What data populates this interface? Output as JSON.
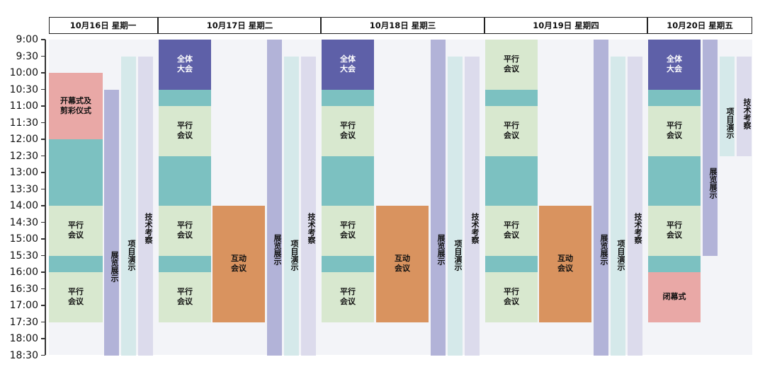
{
  "time_labels": [
    "9:00",
    "9:30",
    "10:00",
    "10:30",
    "11:00",
    "11:30",
    "12:00",
    "12:30",
    "13:00",
    "13:30",
    "14:00",
    "14:30",
    "15:00",
    "15:30",
    "16:00",
    "16:30",
    "17:00",
    "17:30",
    "18:00",
    "18:30"
  ],
  "days": [
    {
      "label": "10月16日  星期一"
    },
    {
      "label": "10月17日  星期二"
    },
    {
      "label": "10月18日  星期三"
    },
    {
      "label": "10月19日  星期四"
    },
    {
      "label": "10月20日  星期五"
    }
  ],
  "colors": {
    "plenary": "#5e60a8",
    "teal": "#7cc1c1",
    "parallel": "#d8e8cf",
    "interactive": "#d9935f",
    "ceremony": "#e9a8a6",
    "exhibition": "#b2b3d8",
    "demo": "#d5e9ea",
    "tech_tour": "#dcdbec",
    "grid_bg": "#f3f4f8"
  },
  "labels": {
    "opening": "开幕式及\n剪彩仪式",
    "parallel": "平行\n会议",
    "plenary": "全体\n大会",
    "interactive": "互动\n会议",
    "exhibition": "展览展示",
    "demo": "项目演示",
    "tech_tour": "技术考察",
    "closing": "闭幕式"
  },
  "events": [
    {
      "day": 0,
      "lane": "main",
      "start": "10:00",
      "end": "12:00",
      "kind": "ceremony",
      "label": "opening"
    },
    {
      "day": 0,
      "lane": "main",
      "start": "12:00",
      "end": "14:00",
      "kind": "teal"
    },
    {
      "day": 0,
      "lane": "main",
      "start": "14:00",
      "end": "15:30",
      "kind": "parallel",
      "label": "parallel"
    },
    {
      "day": 0,
      "lane": "main",
      "start": "15:30",
      "end": "16:00",
      "kind": "teal"
    },
    {
      "day": 0,
      "lane": "main",
      "start": "16:00",
      "end": "17:30",
      "kind": "parallel",
      "label": "parallel"
    },
    {
      "day": 0,
      "lane": "exhibition",
      "start": "10:30",
      "end": "18:30",
      "kind": "exhibition",
      "label": "exhibition"
    },
    {
      "day": 0,
      "lane": "demo",
      "start": "9:30",
      "end": "18:30",
      "kind": "demo",
      "label": "demo"
    },
    {
      "day": 0,
      "lane": "tech",
      "start": "9:30",
      "end": "18:30",
      "kind": "tech_tour",
      "label": "tech_tour"
    },
    {
      "day": 1,
      "lane": "main",
      "start": "9:00",
      "end": "10:30",
      "kind": "plenary",
      "label": "plenary"
    },
    {
      "day": 1,
      "lane": "main",
      "start": "10:30",
      "end": "11:00",
      "kind": "teal"
    },
    {
      "day": 1,
      "lane": "main",
      "start": "11:00",
      "end": "12:30",
      "kind": "parallel",
      "label": "parallel"
    },
    {
      "day": 1,
      "lane": "main",
      "start": "12:30",
      "end": "14:00",
      "kind": "teal"
    },
    {
      "day": 1,
      "lane": "main",
      "start": "14:00",
      "end": "15:30",
      "kind": "parallel",
      "label": "parallel"
    },
    {
      "day": 1,
      "lane": "main",
      "start": "15:30",
      "end": "16:00",
      "kind": "teal"
    },
    {
      "day": 1,
      "lane": "main",
      "start": "16:00",
      "end": "17:30",
      "kind": "parallel",
      "label": "parallel"
    },
    {
      "day": 1,
      "lane": "inter",
      "start": "14:00",
      "end": "17:30",
      "kind": "interactive",
      "label": "interactive"
    },
    {
      "day": 1,
      "lane": "exhibition",
      "start": "9:00",
      "end": "18:30",
      "kind": "exhibition",
      "label": "exhibition"
    },
    {
      "day": 1,
      "lane": "demo",
      "start": "9:30",
      "end": "18:30",
      "kind": "demo",
      "label": "demo"
    },
    {
      "day": 1,
      "lane": "tech",
      "start": "9:30",
      "end": "18:30",
      "kind": "tech_tour",
      "label": "tech_tour"
    },
    {
      "day": 2,
      "lane": "main",
      "start": "9:00",
      "end": "10:30",
      "kind": "plenary",
      "label": "plenary"
    },
    {
      "day": 2,
      "lane": "main",
      "start": "10:30",
      "end": "11:00",
      "kind": "teal"
    },
    {
      "day": 2,
      "lane": "main",
      "start": "11:00",
      "end": "12:30",
      "kind": "parallel",
      "label": "parallel"
    },
    {
      "day": 2,
      "lane": "main",
      "start": "12:30",
      "end": "14:00",
      "kind": "teal"
    },
    {
      "day": 2,
      "lane": "main",
      "start": "14:00",
      "end": "15:30",
      "kind": "parallel",
      "label": "parallel"
    },
    {
      "day": 2,
      "lane": "main",
      "start": "15:30",
      "end": "16:00",
      "kind": "teal"
    },
    {
      "day": 2,
      "lane": "main",
      "start": "16:00",
      "end": "17:30",
      "kind": "parallel",
      "label": "parallel"
    },
    {
      "day": 2,
      "lane": "inter",
      "start": "14:00",
      "end": "17:30",
      "kind": "interactive",
      "label": "interactive"
    },
    {
      "day": 2,
      "lane": "exhibition",
      "start": "9:00",
      "end": "18:30",
      "kind": "exhibition",
      "label": "exhibition"
    },
    {
      "day": 2,
      "lane": "demo",
      "start": "9:30",
      "end": "18:30",
      "kind": "demo",
      "label": "demo"
    },
    {
      "day": 2,
      "lane": "tech",
      "start": "9:30",
      "end": "18:30",
      "kind": "tech_tour",
      "label": "tech_tour"
    },
    {
      "day": 3,
      "lane": "main",
      "start": "9:00",
      "end": "10:30",
      "kind": "parallel",
      "label": "parallel"
    },
    {
      "day": 3,
      "lane": "main",
      "start": "10:30",
      "end": "11:00",
      "kind": "teal"
    },
    {
      "day": 3,
      "lane": "main",
      "start": "11:00",
      "end": "12:30",
      "kind": "parallel",
      "label": "parallel"
    },
    {
      "day": 3,
      "lane": "main",
      "start": "12:30",
      "end": "14:00",
      "kind": "teal"
    },
    {
      "day": 3,
      "lane": "main",
      "start": "14:00",
      "end": "15:30",
      "kind": "parallel",
      "label": "parallel"
    },
    {
      "day": 3,
      "lane": "main",
      "start": "15:30",
      "end": "16:00",
      "kind": "teal"
    },
    {
      "day": 3,
      "lane": "main",
      "start": "16:00",
      "end": "17:30",
      "kind": "parallel",
      "label": "parallel"
    },
    {
      "day": 3,
      "lane": "inter",
      "start": "14:00",
      "end": "17:30",
      "kind": "interactive",
      "label": "interactive"
    },
    {
      "day": 3,
      "lane": "exhibition",
      "start": "9:00",
      "end": "18:30",
      "kind": "exhibition",
      "label": "exhibition"
    },
    {
      "day": 3,
      "lane": "demo",
      "start": "9:30",
      "end": "18:30",
      "kind": "demo",
      "label": "demo"
    },
    {
      "day": 3,
      "lane": "tech",
      "start": "9:30",
      "end": "18:30",
      "kind": "tech_tour",
      "label": "tech_tour"
    },
    {
      "day": 4,
      "lane": "main",
      "start": "9:00",
      "end": "10:30",
      "kind": "plenary",
      "label": "plenary"
    },
    {
      "day": 4,
      "lane": "main",
      "start": "10:30",
      "end": "11:00",
      "kind": "teal"
    },
    {
      "day": 4,
      "lane": "main",
      "start": "11:00",
      "end": "12:30",
      "kind": "parallel",
      "label": "parallel"
    },
    {
      "day": 4,
      "lane": "main",
      "start": "12:30",
      "end": "14:00",
      "kind": "teal"
    },
    {
      "day": 4,
      "lane": "main",
      "start": "14:00",
      "end": "15:30",
      "kind": "parallel",
      "label": "parallel"
    },
    {
      "day": 4,
      "lane": "main",
      "start": "15:30",
      "end": "16:00",
      "kind": "teal"
    },
    {
      "day": 4,
      "lane": "main",
      "start": "16:00",
      "end": "17:30",
      "kind": "ceremony",
      "label": "closing"
    },
    {
      "day": 4,
      "lane": "exhibition",
      "start": "9:00",
      "end": "15:30",
      "kind": "exhibition",
      "label": "exhibition"
    },
    {
      "day": 4,
      "lane": "demo",
      "start": "9:30",
      "end": "12:30",
      "kind": "demo",
      "label": "demo"
    },
    {
      "day": 4,
      "lane": "tech",
      "start": "9:30",
      "end": "12:30",
      "kind": "tech_tour",
      "label": "tech_tour"
    }
  ]
}
